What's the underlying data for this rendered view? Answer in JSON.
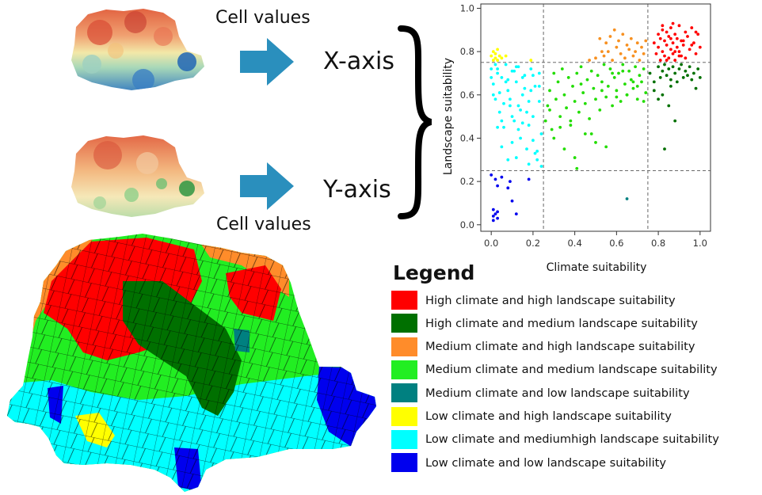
{
  "diagram": {
    "x_source_label": "Cell values",
    "x_axis_label": "X-axis",
    "y_source_label": "Cell values",
    "y_axis_label": "Y-axis"
  },
  "chart_data": {
    "type": "scatter",
    "xlabel": "Climate suitability",
    "ylabel": "Landscape suitability",
    "xlim": [
      -0.05,
      1.05
    ],
    "ylim": [
      -0.03,
      1.02
    ],
    "xticks": [
      "0.0",
      "0.2",
      "0.4",
      "0.6",
      "0.8",
      "1.0"
    ],
    "yticks": [
      "0.0",
      "0.2",
      "0.4",
      "0.6",
      "0.8",
      "1.0"
    ],
    "thresholds": {
      "x": [
        0.25,
        0.75
      ],
      "y": [
        0.25,
        0.75
      ]
    },
    "grid": false,
    "series": [
      {
        "class": "high_high",
        "color": "#ff0000",
        "x": [
          0.78,
          0.79,
          0.8,
          0.8,
          0.81,
          0.81,
          0.82,
          0.82,
          0.83,
          0.83,
          0.84,
          0.84,
          0.85,
          0.85,
          0.86,
          0.86,
          0.87,
          0.87,
          0.88,
          0.88,
          0.89,
          0.89,
          0.9,
          0.9,
          0.91,
          0.91,
          0.92,
          0.93,
          0.93,
          0.94,
          0.95,
          0.96,
          0.97,
          0.98,
          0.99,
          1.0,
          0.84,
          0.86,
          0.88,
          0.9,
          0.92,
          0.96,
          0.98,
          0.82,
          0.87
        ],
        "y": [
          0.84,
          0.79,
          0.88,
          0.82,
          0.76,
          0.86,
          0.8,
          0.92,
          0.78,
          0.85,
          0.83,
          0.89,
          0.77,
          0.87,
          0.81,
          0.91,
          0.84,
          0.79,
          0.88,
          0.76,
          0.82,
          0.86,
          0.8,
          0.92,
          0.78,
          0.85,
          0.83,
          0.89,
          0.77,
          0.87,
          0.81,
          0.91,
          0.84,
          0.79,
          0.88,
          0.82,
          0.76,
          0.86,
          0.8,
          0.78,
          0.85,
          0.83,
          0.89,
          0.9,
          0.93
        ]
      },
      {
        "class": "high_medium",
        "color": "#007000",
        "x": [
          0.76,
          0.78,
          0.8,
          0.81,
          0.82,
          0.83,
          0.84,
          0.85,
          0.86,
          0.87,
          0.88,
          0.89,
          0.9,
          0.91,
          0.92,
          0.93,
          0.94,
          0.95,
          0.96,
          0.97,
          0.98,
          0.99,
          1.0,
          0.8,
          0.85,
          0.88,
          0.83,
          0.78,
          0.82,
          0.86
        ],
        "y": [
          0.7,
          0.66,
          0.73,
          0.68,
          0.71,
          0.74,
          0.69,
          0.72,
          0.67,
          0.73,
          0.7,
          0.66,
          0.72,
          0.74,
          0.68,
          0.71,
          0.69,
          0.73,
          0.67,
          0.7,
          0.63,
          0.72,
          0.68,
          0.58,
          0.55,
          0.48,
          0.35,
          0.62,
          0.6,
          0.64
        ]
      },
      {
        "class": "medium_high",
        "color": "#f79020",
        "x": [
          0.47,
          0.5,
          0.52,
          0.54,
          0.55,
          0.56,
          0.57,
          0.58,
          0.6,
          0.61,
          0.62,
          0.63,
          0.64,
          0.65,
          0.66,
          0.67,
          0.68,
          0.69,
          0.7,
          0.71,
          0.72,
          0.73,
          0.74,
          0.53,
          0.59
        ],
        "y": [
          0.76,
          0.77,
          0.86,
          0.78,
          0.84,
          0.8,
          0.87,
          0.76,
          0.82,
          0.85,
          0.79,
          0.88,
          0.77,
          0.83,
          0.81,
          0.86,
          0.78,
          0.8,
          0.84,
          0.76,
          0.82,
          0.79,
          0.85,
          0.8,
          0.9
        ]
      },
      {
        "class": "medium_medium",
        "color": "#22dd00",
        "x": [
          0.26,
          0.27,
          0.28,
          0.29,
          0.3,
          0.31,
          0.32,
          0.33,
          0.34,
          0.35,
          0.36,
          0.37,
          0.38,
          0.39,
          0.4,
          0.41,
          0.42,
          0.43,
          0.44,
          0.45,
          0.46,
          0.47,
          0.48,
          0.49,
          0.5,
          0.51,
          0.52,
          0.53,
          0.54,
          0.55,
          0.56,
          0.57,
          0.58,
          0.59,
          0.6,
          0.61,
          0.62,
          0.63,
          0.64,
          0.65,
          0.66,
          0.67,
          0.68,
          0.69,
          0.7,
          0.71,
          0.72,
          0.73,
          0.74,
          0.3,
          0.35,
          0.4,
          0.45,
          0.5,
          0.55,
          0.6,
          0.65,
          0.7,
          0.28,
          0.33,
          0.38,
          0.43,
          0.48,
          0.53,
          0.58,
          0.63,
          0.68,
          0.73,
          0.41
        ],
        "y": [
          0.48,
          0.55,
          0.62,
          0.44,
          0.7,
          0.58,
          0.66,
          0.5,
          0.72,
          0.6,
          0.54,
          0.68,
          0.46,
          0.64,
          0.57,
          0.7,
          0.52,
          0.73,
          0.61,
          0.56,
          0.67,
          0.49,
          0.71,
          0.63,
          0.58,
          0.69,
          0.53,
          0.66,
          0.74,
          0.59,
          0.64,
          0.72,
          0.55,
          0.68,
          0.62,
          0.7,
          0.57,
          0.74,
          0.65,
          0.6,
          0.71,
          0.67,
          0.63,
          0.73,
          0.58,
          0.69,
          0.66,
          0.72,
          0.61,
          0.4,
          0.35,
          0.31,
          0.42,
          0.38,
          0.36,
          0.59,
          0.6,
          0.64,
          0.53,
          0.45,
          0.48,
          0.65,
          0.42,
          0.62,
          0.7,
          0.71,
          0.66,
          0.57,
          0.26
        ]
      },
      {
        "class": "medium_low",
        "color": "#008080",
        "x": [
          0.65
        ],
        "y": [
          0.12
        ]
      },
      {
        "class": "low_high",
        "color": "#ffff00",
        "x": [
          0.0,
          0.01,
          0.01,
          0.02,
          0.02,
          0.03,
          0.03,
          0.04,
          0.05,
          0.07,
          0.19
        ],
        "y": [
          0.78,
          0.76,
          0.8,
          0.77,
          0.79,
          0.76,
          0.81,
          0.78,
          0.77,
          0.78,
          0.76
        ]
      },
      {
        "class": "low_mediumhigh",
        "color": "#00ffff",
        "x": [
          0.0,
          0.01,
          0.02,
          0.03,
          0.04,
          0.05,
          0.06,
          0.07,
          0.08,
          0.09,
          0.1,
          0.11,
          0.12,
          0.13,
          0.14,
          0.15,
          0.16,
          0.17,
          0.18,
          0.19,
          0.2,
          0.21,
          0.22,
          0.23,
          0.24,
          0.02,
          0.04,
          0.06,
          0.08,
          0.1,
          0.12,
          0.14,
          0.16,
          0.18,
          0.2,
          0.22,
          0.01,
          0.03,
          0.05,
          0.07,
          0.09,
          0.11,
          0.13,
          0.15,
          0.17,
          0.19,
          0.21,
          0.23,
          0.03,
          0.08,
          0.13,
          0.18,
          0.23,
          0.05,
          0.15,
          0.2,
          0.1,
          0.0,
          0.24,
          0.12
        ],
        "y": [
          0.72,
          0.65,
          0.58,
          0.7,
          0.52,
          0.68,
          0.45,
          0.74,
          0.62,
          0.55,
          0.71,
          0.48,
          0.66,
          0.73,
          0.4,
          0.6,
          0.69,
          0.35,
          0.57,
          0.72,
          0.5,
          0.64,
          0.3,
          0.7,
          0.42,
          0.74,
          0.61,
          0.56,
          0.67,
          0.38,
          0.73,
          0.53,
          0.63,
          0.46,
          0.69,
          0.34,
          0.6,
          0.72,
          0.48,
          0.66,
          0.58,
          0.71,
          0.44,
          0.68,
          0.52,
          0.62,
          0.33,
          0.57,
          0.45,
          0.3,
          0.55,
          0.28,
          0.64,
          0.36,
          0.47,
          0.39,
          0.5,
          0.68,
          0.27,
          0.31
        ]
      },
      {
        "class": "low_low",
        "color": "#0000ee",
        "x": [
          0.0,
          0.01,
          0.01,
          0.02,
          0.02,
          0.03,
          0.03,
          0.05,
          0.08,
          0.09,
          0.1,
          0.12,
          0.18,
          0.03,
          0.01
        ],
        "y": [
          0.23,
          0.04,
          0.07,
          0.05,
          0.21,
          0.06,
          0.03,
          0.22,
          0.17,
          0.2,
          0.11,
          0.05,
          0.21,
          0.18,
          0.02
        ]
      }
    ]
  },
  "legend": {
    "title": "Legend",
    "items": [
      {
        "label": "High climate and high landscape suitability",
        "color": "#ff0000"
      },
      {
        "label": "High climate and medium landscape suitability",
        "color": "#007000"
      },
      {
        "label": "Medium climate and high landscape suitability",
        "color": "#ff8c2a"
      },
      {
        "label": "Medium climate and medium landscape suitability",
        "color": "#22ee22"
      },
      {
        "label": "Medium climate and low landscape suitability",
        "color": "#008080"
      },
      {
        "label": "Low climate and high landscape suitability",
        "color": "#ffff00"
      },
      {
        "label": "Low climate and mediumhigh landscape suitability",
        "color": "#00ffff"
      },
      {
        "label": "Low climate and low landscape suitability",
        "color": "#0000ee"
      }
    ]
  }
}
